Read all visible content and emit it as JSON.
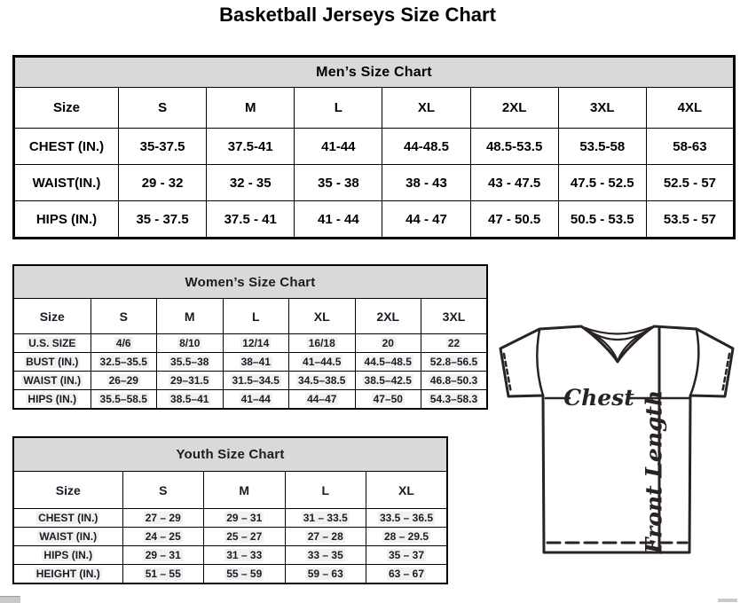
{
  "page": {
    "title": "Basketball Jerseys Size Chart"
  },
  "tables": {
    "mens": {
      "title": "Men’s Size Chart",
      "columns": [
        "Size",
        "S",
        "M",
        "L",
        "XL",
        "2XL",
        "3XL",
        "4XL"
      ],
      "rows": [
        {
          "label": "CHEST (IN.)",
          "values": [
            "35-37.5",
            "37.5-41",
            "41-44",
            "44-48.5",
            "48.5-53.5",
            "53.5-58",
            "58-63"
          ]
        },
        {
          "label": "WAIST(IN.)",
          "values": [
            "29 - 32",
            "32 - 35",
            "35 - 38",
            "38 - 43",
            "43 - 47.5",
            "47.5 - 52.5",
            "52.5 - 57"
          ]
        },
        {
          "label": "HIPS (IN.)",
          "values": [
            "35 - 37.5",
            "37.5 - 41",
            "41 - 44",
            "44 - 47",
            "47 - 50.5",
            "50.5 - 53.5",
            "53.5 - 57"
          ]
        }
      ]
    },
    "womens": {
      "title": "Women’s Size Chart",
      "columns": [
        "Size",
        "S",
        "M",
        "L",
        "XL",
        "2XL",
        "3XL"
      ],
      "rows": [
        {
          "label": "U.S. SIZE",
          "values": [
            "4/6",
            "8/10",
            "12/14",
            "16/18",
            "20",
            "22"
          ]
        },
        {
          "label": "BUST (IN.)",
          "values": [
            "32.5–35.5",
            "35.5–38",
            "38–41",
            "41–44.5",
            "44.5–48.5",
            "52.8–56.5"
          ]
        },
        {
          "label": "WAIST (IN.)",
          "values": [
            "26–29",
            "29–31.5",
            "31.5–34.5",
            "34.5–38.5",
            "38.5–42.5",
            "46.8–50.3"
          ]
        },
        {
          "label": "HIPS (IN.)",
          "values": [
            "35.5–58.5",
            "38.5–41",
            "41–44",
            "44–47",
            "47–50",
            "54.3–58.3"
          ]
        }
      ]
    },
    "youth": {
      "title": "Youth Size Chart",
      "columns": [
        "Size",
        "S",
        "M",
        "L",
        "XL"
      ],
      "rows": [
        {
          "label": "CHEST (IN.)",
          "values": [
            "27 – 29",
            "29 – 31",
            "31 – 33.5",
            "33.5 – 36.5"
          ]
        },
        {
          "label": "WAIST (IN.)",
          "values": [
            "24 – 25",
            "25 – 27",
            "27 – 28",
            "28 – 29.5"
          ]
        },
        {
          "label": "HIPS (IN.)",
          "values": [
            "29 – 31",
            "31 – 33",
            "33 – 35",
            "35 – 37"
          ]
        },
        {
          "label": "HEIGHT (IN.)",
          "values": [
            "51 – 55",
            "55 – 59",
            "59 – 63",
            "63 – 67"
          ]
        }
      ]
    }
  },
  "diagram": {
    "chest_label": "Chest",
    "front_length_label": "Front Length"
  },
  "colors": {
    "header_gray": "#d9d9d9",
    "border_black": "#000000",
    "diagram_ink": "#2a2324"
  }
}
